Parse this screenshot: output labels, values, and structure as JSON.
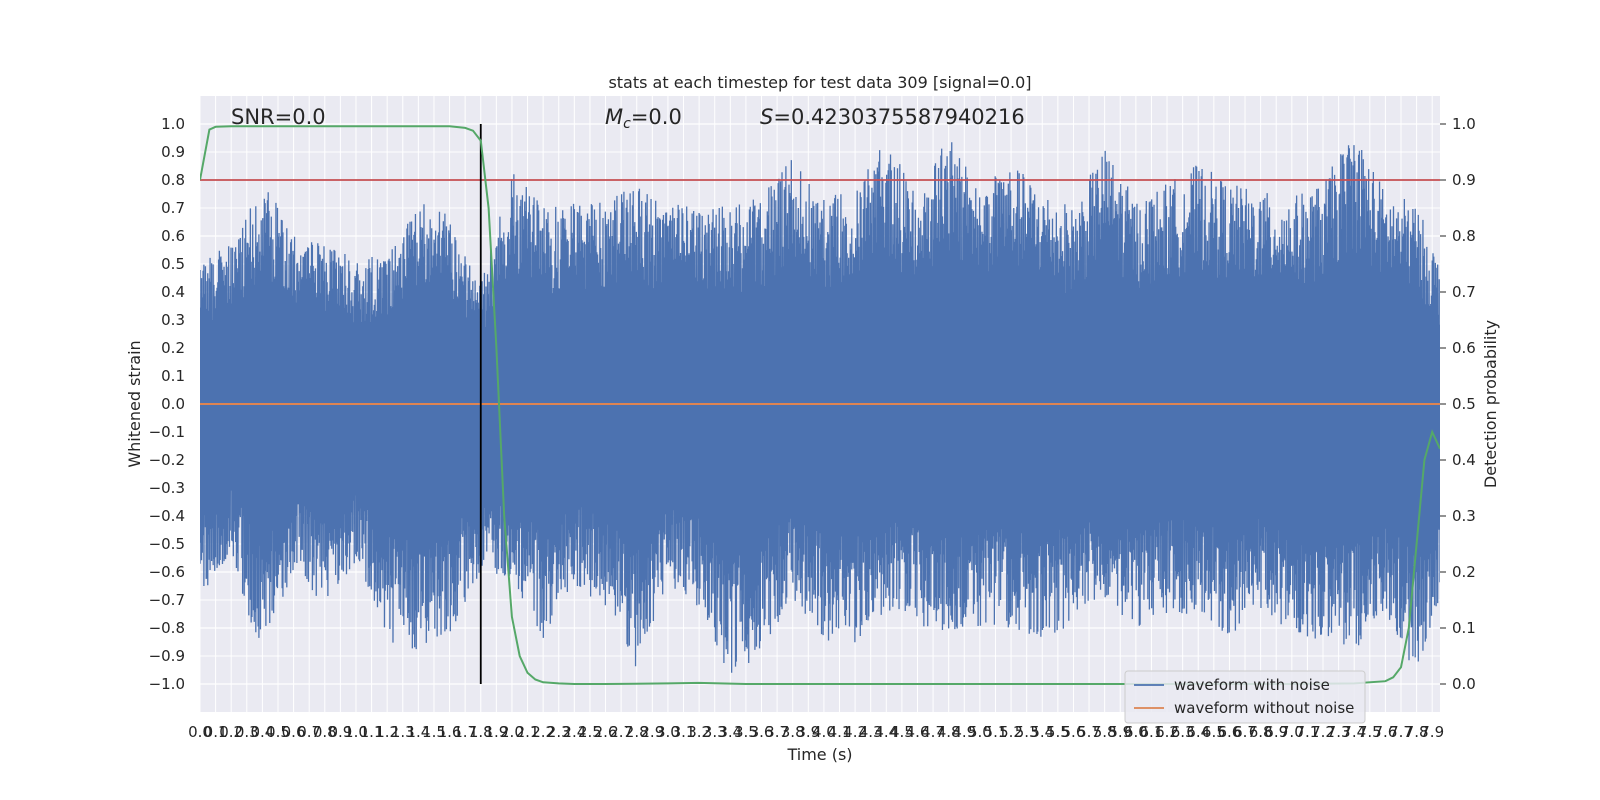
{
  "chart_data": {
    "type": "line",
    "title": "stats at each timestep for test data 309 [signal=0.0]",
    "xlabel": "Time (s)",
    "ylabel": "Whitened strain",
    "ylabel_right": "Detection probability",
    "xlim": [
      0.0,
      7.95
    ],
    "ylim": [
      -1.1,
      1.1
    ],
    "ylim_right": [
      -0.05,
      1.05
    ],
    "x_tick_labels": [
      "0.0",
      "0.1",
      "0.2",
      "0.3",
      "0.4",
      "0.5",
      "0.6",
      "0.7",
      "0.8",
      "0.9",
      "1.0",
      "1.1",
      "1.2",
      "1.3",
      "1.4",
      "1.5",
      "1.6",
      "1.7",
      "1.8",
      "1.9",
      "2.0",
      "2.1",
      "2.2",
      "2.3",
      "2.4",
      "2.5",
      "2.6",
      "2.7",
      "2.8",
      "2.9",
      "3.0",
      "3.1",
      "3.2",
      "3.3",
      "3.4",
      "3.5",
      "3.6",
      "3.7",
      "3.8",
      "3.9",
      "4.0",
      "4.1",
      "4.2",
      "4.3",
      "4.4",
      "4.5",
      "4.6",
      "4.7",
      "4.8",
      "4.9",
      "5.0",
      "5.1",
      "5.2",
      "5.3",
      "5.4",
      "5.5",
      "5.6",
      "5.7",
      "5.8",
      "5.9",
      "6.0",
      "6.1",
      "6.2",
      "6.3",
      "6.4",
      "6.5",
      "6.6",
      "6.7",
      "6.8",
      "6.9",
      "7.0",
      "7.1",
      "7.2",
      "7.3",
      "7.4",
      "7.5",
      "7.6",
      "7.7",
      "7.8",
      "7.9"
    ],
    "y_tick_labels": [
      "1.0",
      "0.9",
      "0.8",
      "0.7",
      "0.6",
      "0.5",
      "0.4",
      "0.3",
      "0.2",
      "0.1",
      "0.0",
      "−0.1",
      "−0.2",
      "−0.3",
      "−0.4",
      "−0.5",
      "−0.6",
      "−0.7",
      "−0.8",
      "−0.9",
      "−1.0"
    ],
    "y_tick_values": [
      1.0,
      0.9,
      0.8,
      0.7,
      0.6,
      0.5,
      0.4,
      0.3,
      0.2,
      0.1,
      0.0,
      -0.1,
      -0.2,
      -0.3,
      -0.4,
      -0.5,
      -0.6,
      -0.7,
      -0.8,
      -0.9,
      -1.0
    ],
    "y_right_tick_labels": [
      "1.0",
      "0.9",
      "0.8",
      "0.7",
      "0.6",
      "0.5",
      "0.4",
      "0.3",
      "0.2",
      "0.1",
      "0.0"
    ],
    "y_right_tick_values": [
      1.0,
      0.9,
      0.8,
      0.7,
      0.6,
      0.5,
      0.4,
      0.3,
      0.2,
      0.1,
      0.0
    ],
    "annotations": {
      "snr": "SNR=0.0",
      "mc_symbol": "M",
      "mc_sub": "c",
      "mc_value": "=0.0",
      "s_symbol": "S",
      "s_value": "=0.4230375587940216"
    },
    "series": [
      {
        "name": "waveform with noise",
        "color": "#4c72b0",
        "envelope": {
          "x": [
            0.0,
            0.2,
            0.4,
            0.6,
            0.8,
            1.0,
            1.2,
            1.4,
            1.6,
            1.8,
            2.0,
            2.2,
            2.4,
            2.6,
            2.8,
            3.0,
            3.2,
            3.4,
            3.6,
            3.8,
            4.0,
            4.2,
            4.4,
            4.6,
            4.8,
            5.0,
            5.2,
            5.4,
            5.6,
            5.8,
            6.0,
            6.2,
            6.4,
            6.6,
            6.8,
            7.0,
            7.2,
            7.4,
            7.6,
            7.8,
            7.95
          ],
          "upper": [
            0.52,
            0.57,
            0.81,
            0.6,
            0.57,
            0.52,
            0.53,
            0.74,
            0.67,
            0.43,
            0.85,
            0.7,
            0.74,
            0.72,
            0.8,
            0.7,
            0.74,
            0.7,
            0.75,
            0.88,
            0.73,
            0.79,
            0.94,
            0.75,
            0.97,
            0.77,
            0.86,
            0.77,
            0.7,
            0.92,
            0.73,
            0.79,
            0.86,
            0.79,
            0.76,
            0.74,
            0.79,
            0.99,
            0.76,
            0.72,
            0.5
          ],
          "lower": [
            -0.7,
            -0.55,
            -0.92,
            -0.6,
            -0.73,
            -0.56,
            -0.85,
            -0.9,
            -0.82,
            -0.6,
            -0.62,
            -0.84,
            -0.65,
            -0.73,
            -0.95,
            -0.65,
            -0.73,
            -1.0,
            -0.88,
            -0.7,
            -0.85,
            -0.86,
            -0.74,
            -0.79,
            -0.83,
            -0.8,
            -0.8,
            -0.85,
            -0.78,
            -0.7,
            -0.8,
            -0.75,
            -0.75,
            -0.83,
            -0.73,
            -0.82,
            -0.85,
            -0.9,
            -0.75,
            -0.98,
            -0.75
          ]
        }
      },
      {
        "name": "waveform without noise",
        "color": "#dd8452",
        "x": [
          0.0,
          7.95
        ],
        "y": [
          0.0,
          0.0
        ]
      },
      {
        "name": "",
        "axis": "right",
        "color": "#55a868",
        "x": [
          0.0,
          0.06,
          0.1,
          0.2,
          0.4,
          0.8,
          1.2,
          1.6,
          1.7,
          1.75,
          1.8,
          1.85,
          1.9,
          1.95,
          2.0,
          2.05,
          2.1,
          2.15,
          2.2,
          2.3,
          2.4,
          2.6,
          3.0,
          3.2,
          3.5,
          4.0,
          5.0,
          6.0,
          7.0,
          7.4,
          7.6,
          7.65,
          7.7,
          7.75,
          7.8,
          7.85,
          7.9,
          7.95
        ],
        "y": [
          0.9,
          0.99,
          0.995,
          0.996,
          0.996,
          0.996,
          0.996,
          0.996,
          0.993,
          0.988,
          0.97,
          0.85,
          0.6,
          0.3,
          0.12,
          0.05,
          0.02,
          0.008,
          0.003,
          0.001,
          0.0,
          0.0,
          0.001,
          0.002,
          0.0,
          0.0,
          0.0,
          0.0,
          0.0,
          0.001,
          0.005,
          0.012,
          0.03,
          0.1,
          0.25,
          0.4,
          0.45,
          0.42
        ]
      }
    ],
    "reference_lines": {
      "threshold_right": {
        "value": 0.9,
        "color": "#c44e52"
      },
      "vertical_x": {
        "value": 1.8,
        "color": "#000000"
      }
    },
    "legend": {
      "placement": "lower-right",
      "entries": [
        {
          "label": "waveform with noise",
          "color": "#4c72b0"
        },
        {
          "label": "waveform without noise",
          "color": "#dd8452"
        }
      ]
    },
    "grid": true,
    "style": {
      "axes_bg": "#eaeaf2",
      "grid_color": "#ffffff",
      "text_color": "#262626"
    }
  }
}
